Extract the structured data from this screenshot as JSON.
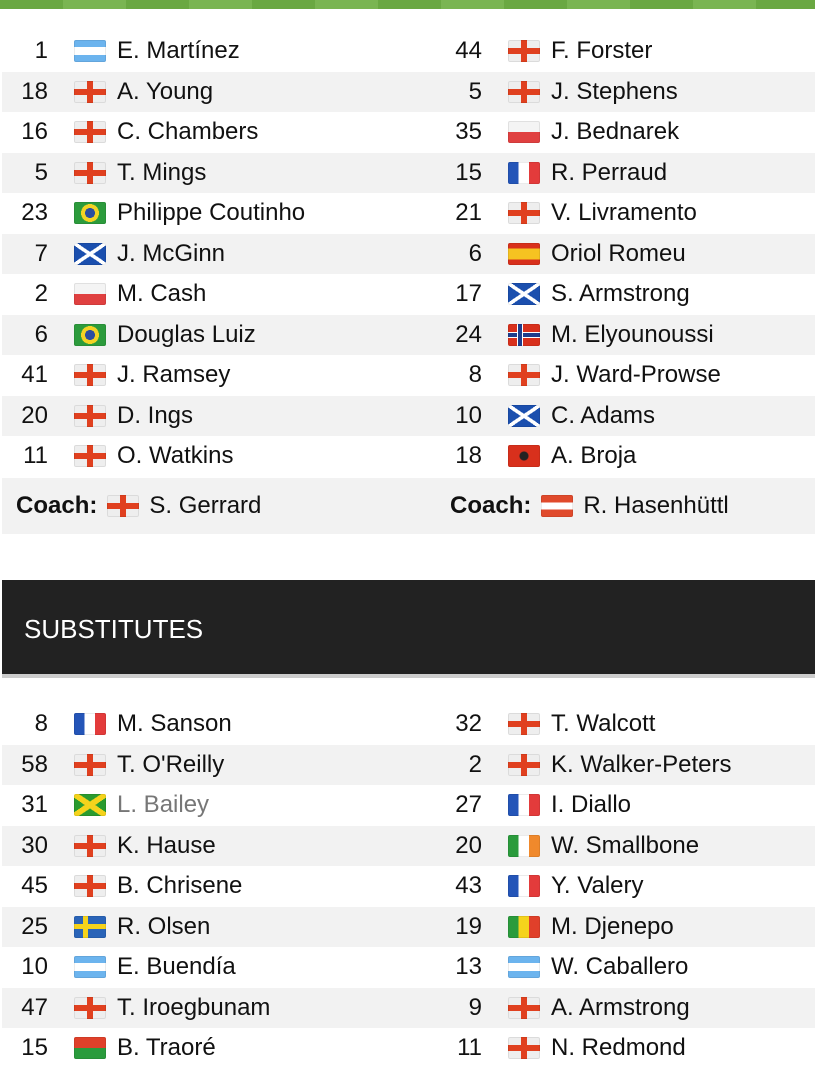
{
  "colors": {
    "top_bar": "#6aa842",
    "section_header": "#222222",
    "alt_row": "#f2f2f2"
  },
  "lineups": {
    "home": [
      {
        "num": "1",
        "flag": "arg",
        "name": "E. Martínez"
      },
      {
        "num": "18",
        "flag": "eng",
        "name": "A. Young"
      },
      {
        "num": "16",
        "flag": "eng",
        "name": "C. Chambers"
      },
      {
        "num": "5",
        "flag": "eng",
        "name": "T. Mings"
      },
      {
        "num": "23",
        "flag": "bra",
        "name": "Philippe Coutinho"
      },
      {
        "num": "7",
        "flag": "sco",
        "name": "J. McGinn"
      },
      {
        "num": "2",
        "flag": "pol",
        "name": "M. Cash"
      },
      {
        "num": "6",
        "flag": "bra",
        "name": "Douglas Luiz"
      },
      {
        "num": "41",
        "flag": "eng",
        "name": "J. Ramsey"
      },
      {
        "num": "20",
        "flag": "eng",
        "name": "D. Ings"
      },
      {
        "num": "11",
        "flag": "eng",
        "name": "O. Watkins"
      }
    ],
    "away": [
      {
        "num": "44",
        "flag": "eng",
        "name": "F. Forster"
      },
      {
        "num": "5",
        "flag": "eng",
        "name": "J. Stephens"
      },
      {
        "num": "35",
        "flag": "pol",
        "name": "J. Bednarek"
      },
      {
        "num": "15",
        "flag": "fra",
        "name": "R. Perraud"
      },
      {
        "num": "21",
        "flag": "eng",
        "name": "V. Livramento"
      },
      {
        "num": "6",
        "flag": "esp",
        "name": "Oriol Romeu"
      },
      {
        "num": "17",
        "flag": "sco",
        "name": "S. Armstrong"
      },
      {
        "num": "24",
        "flag": "nor",
        "name": "M. Elyounoussi"
      },
      {
        "num": "8",
        "flag": "eng",
        "name": "J. Ward-Prowse"
      },
      {
        "num": "10",
        "flag": "sco",
        "name": "C. Adams"
      },
      {
        "num": "18",
        "flag": "alb",
        "name": "A. Broja"
      }
    ]
  },
  "coaches": {
    "label": "Coach:",
    "home": {
      "flag": "eng",
      "name": "S. Gerrard"
    },
    "away": {
      "flag": "aut",
      "name": "R. Hasenhüttl"
    }
  },
  "substitutes": {
    "title": "SUBSTITUTES",
    "home": [
      {
        "num": "8",
        "flag": "fra",
        "name": "M. Sanson"
      },
      {
        "num": "58",
        "flag": "eng",
        "name": "T. O'Reilly"
      },
      {
        "num": "31",
        "flag": "jam",
        "name": "L. Bailey",
        "dimmed": true
      },
      {
        "num": "30",
        "flag": "eng",
        "name": "K. Hause"
      },
      {
        "num": "45",
        "flag": "eng",
        "name": "B. Chrisene"
      },
      {
        "num": "25",
        "flag": "swe",
        "name": "R. Olsen"
      },
      {
        "num": "10",
        "flag": "arg",
        "name": "E. Buendía"
      },
      {
        "num": "47",
        "flag": "eng",
        "name": "T. Iroegbunam"
      },
      {
        "num": "15",
        "flag": "bfa",
        "name": "B. Traoré"
      }
    ],
    "away": [
      {
        "num": "32",
        "flag": "eng",
        "name": "T. Walcott"
      },
      {
        "num": "2",
        "flag": "eng",
        "name": "K. Walker-Peters"
      },
      {
        "num": "27",
        "flag": "fra",
        "name": "I. Diallo"
      },
      {
        "num": "20",
        "flag": "irl",
        "name": "W. Smallbone"
      },
      {
        "num": "43",
        "flag": "fra",
        "name": "Y. Valery"
      },
      {
        "num": "19",
        "flag": "mli",
        "name": "M. Djenepo"
      },
      {
        "num": "13",
        "flag": "arg",
        "name": "W. Caballero"
      },
      {
        "num": "9",
        "flag": "eng",
        "name": "A. Armstrong"
      },
      {
        "num": "11",
        "flag": "eng",
        "name": "N. Redmond"
      }
    ]
  }
}
